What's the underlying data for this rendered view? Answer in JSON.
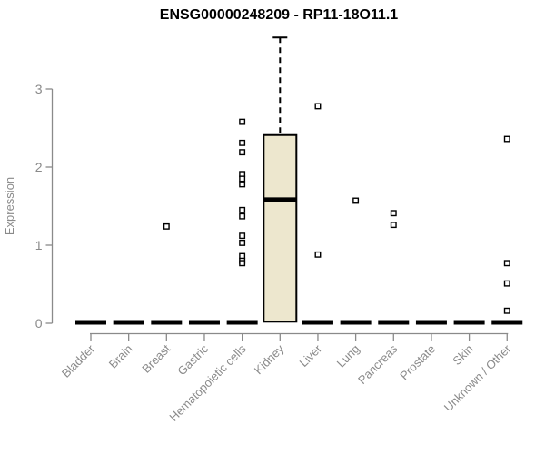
{
  "chart_data": {
    "type": "boxplot",
    "title": "ENSG00000248209 - RP11-18O11.1",
    "ylabel": "Expression",
    "xlabel": "",
    "ylim": [
      0,
      3.7
    ],
    "yticks": [
      0,
      1,
      2,
      3
    ],
    "grid": false,
    "legend": "none",
    "categories": [
      "Bladder",
      "Brain",
      "Breast",
      "Gastric",
      "Hematopoietic cells",
      "Kidney",
      "Liver",
      "Lung",
      "Pancreas",
      "Prostate",
      "Skin",
      "Unknown / Other"
    ],
    "boxes": [
      {
        "category": "Bladder",
        "q1": 0,
        "median": 0,
        "q3": 0.03,
        "whisker_low": 0,
        "whisker_high": 0.03,
        "outliers": []
      },
      {
        "category": "Brain",
        "q1": 0,
        "median": 0,
        "q3": 0.03,
        "whisker_low": 0,
        "whisker_high": 0.03,
        "outliers": []
      },
      {
        "category": "Breast",
        "q1": 0,
        "median": 0,
        "q3": 0.03,
        "whisker_low": 0,
        "whisker_high": 0.03,
        "outliers": [
          1.24
        ]
      },
      {
        "category": "Gastric",
        "q1": 0,
        "median": 0,
        "q3": 0.03,
        "whisker_low": 0,
        "whisker_high": 0.03,
        "outliers": []
      },
      {
        "category": "Hematopoietic cells",
        "q1": 0,
        "median": 0,
        "q3": 0.03,
        "whisker_low": 0,
        "whisker_high": 0.03,
        "outliers": [
          2.58,
          2.31,
          2.19,
          1.91,
          1.85,
          1.78,
          1.45,
          1.37,
          1.12,
          1.03,
          0.86,
          0.8,
          0.77
        ]
      },
      {
        "category": "Kidney",
        "q1": 0.02,
        "median": 1.58,
        "q3": 2.41,
        "whisker_low": 0.02,
        "whisker_high": 3.66,
        "outliers": []
      },
      {
        "category": "Liver",
        "q1": 0,
        "median": 0,
        "q3": 0.03,
        "whisker_low": 0,
        "whisker_high": 0.03,
        "outliers": [
          2.78,
          0.88
        ]
      },
      {
        "category": "Lung",
        "q1": 0,
        "median": 0,
        "q3": 0.03,
        "whisker_low": 0,
        "whisker_high": 0.03,
        "outliers": [
          1.57
        ]
      },
      {
        "category": "Pancreas",
        "q1": 0,
        "median": 0,
        "q3": 0.03,
        "whisker_low": 0,
        "whisker_high": 0.03,
        "outliers": [
          1.41,
          1.26
        ]
      },
      {
        "category": "Prostate",
        "q1": 0,
        "median": 0,
        "q3": 0.03,
        "whisker_low": 0,
        "whisker_high": 0.03,
        "outliers": []
      },
      {
        "category": "Skin",
        "q1": 0,
        "median": 0,
        "q3": 0.03,
        "whisker_low": 0,
        "whisker_high": 0.03,
        "outliers": []
      },
      {
        "category": "Unknown / Other",
        "q1": 0,
        "median": 0,
        "q3": 0.03,
        "whisker_low": 0,
        "whisker_high": 0.03,
        "outliers": [
          2.36,
          0.77,
          0.51,
          0.16
        ]
      }
    ],
    "colors": {
      "box_fill": "#EDE7CE",
      "box_stroke": "#000000",
      "median": "#000000",
      "collapsed_bar": "#000000",
      "outlier_stroke": "#000000",
      "outlier_fill": "#ffffff",
      "axis": "#8a8a8a",
      "tick_text": "#8a8a8a",
      "title_text": "#000000",
      "background": "#ffffff"
    }
  }
}
